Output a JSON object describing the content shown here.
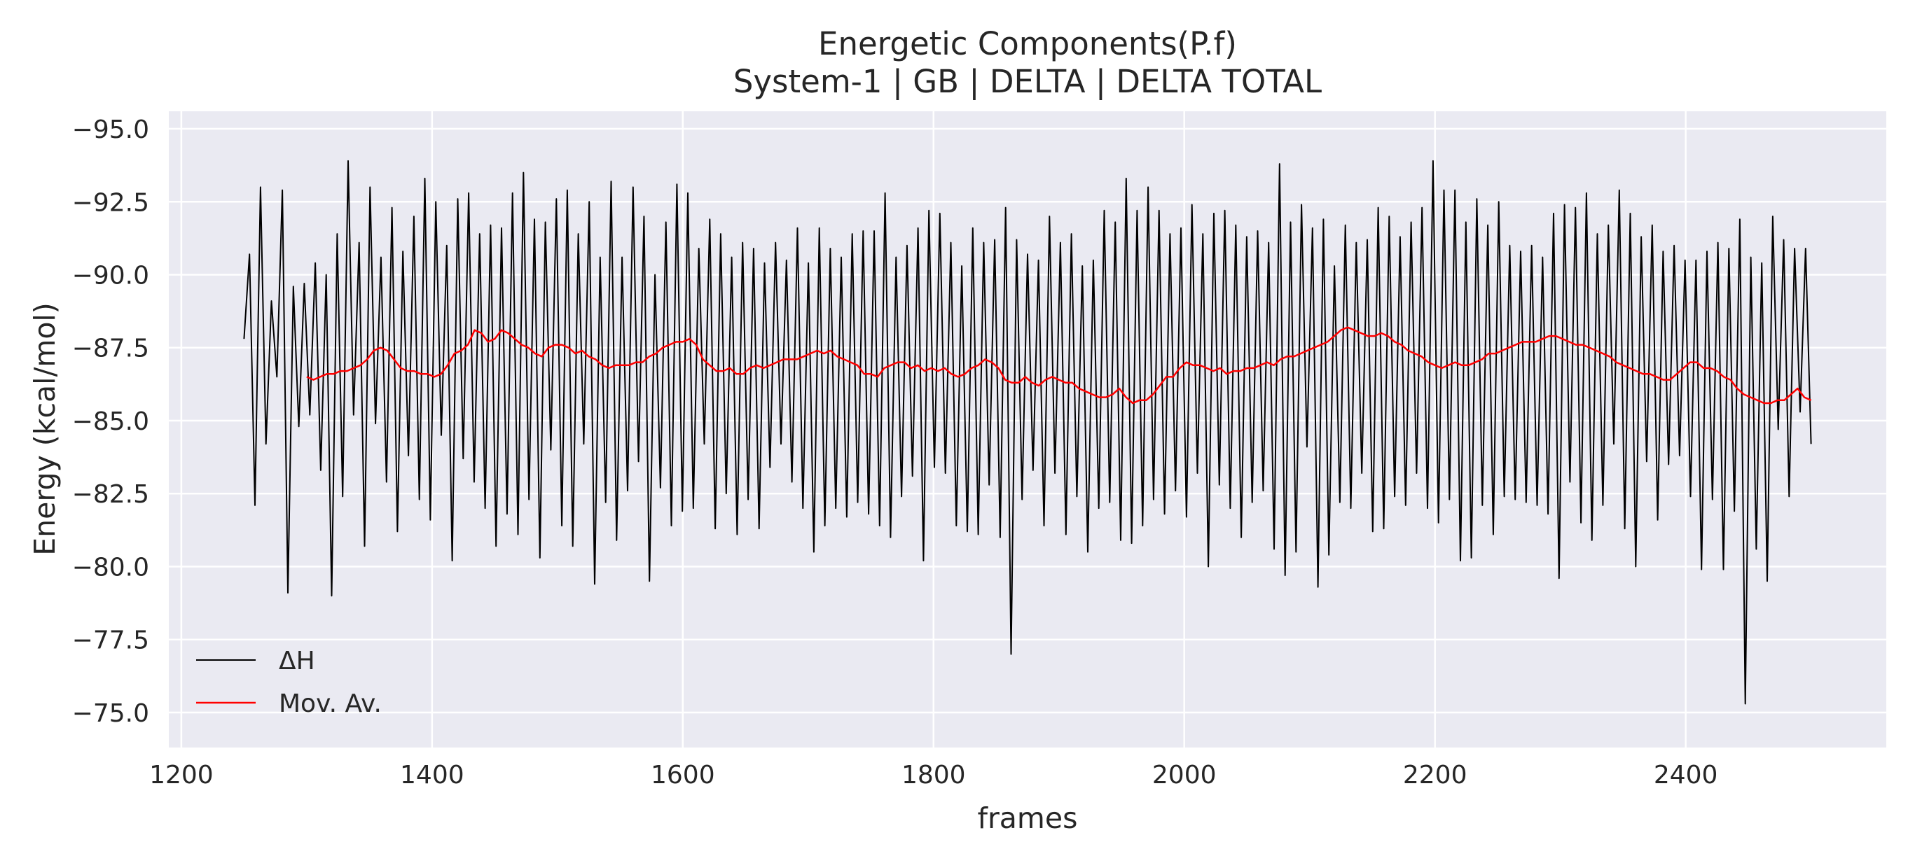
{
  "chart_data": {
    "type": "line",
    "title": "Energetic Components(P.f)",
    "subtitle": "System-1 | GB | DELTA | DELTA TOTAL",
    "xlabel": "frames",
    "ylabel": "Energy (kcal/mol)",
    "xlim": [
      1190,
      2560
    ],
    "ylim": [
      -95.6,
      -73.8
    ],
    "y_inverted": true,
    "grid": true,
    "x_ticks": [
      1200,
      1400,
      1600,
      1800,
      2000,
      2200,
      2400
    ],
    "x_tick_labels": [
      "1200",
      "1400",
      "1600",
      "1800",
      "2000",
      "2200",
      "2400"
    ],
    "y_ticks": [
      -95.0,
      -92.5,
      -90.0,
      -87.5,
      -85.0,
      -82.5,
      -80.0,
      -77.5,
      -75.0
    ],
    "y_tick_labels": [
      "−95.0",
      "−92.5",
      "−90.0",
      "−87.5",
      "−85.0",
      "−82.5",
      "−80.0",
      "−77.5",
      "−75.0"
    ],
    "legend_position": "bottom-left",
    "colors": {
      "background": "#eaeaf2",
      "grid": "#ffffff",
      "delta_h": "#000000",
      "mov_av": "#ff0000"
    },
    "series": [
      {
        "name": "ΔH",
        "color": "#000000",
        "x_start": 1250,
        "x_step": 25,
        "values": [
          -87.8,
          -90.7,
          -82.1,
          -93.0,
          -84.2,
          -89.1,
          -86.5,
          -92.9,
          -79.1,
          -89.6,
          -84.8,
          -89.7,
          -85.2,
          -90.4,
          -83.3,
          -90.0,
          -79.0,
          -91.4,
          -82.4,
          -93.9,
          -85.2,
          -91.1,
          -80.7,
          -93.0,
          -84.9,
          -90.6,
          -82.9,
          -92.3,
          -81.2,
          -90.8,
          -83.8,
          -92.0,
          -82.3,
          -93.3,
          -81.6,
          -92.5,
          -84.5,
          -91.0,
          -80.2,
          -92.6,
          -83.7,
          -92.8,
          -82.9,
          -91.4,
          -82.0,
          -91.7,
          -80.7,
          -91.6,
          -81.8,
          -92.8,
          -81.1,
          -93.5,
          -82.3,
          -91.9,
          -80.3,
          -91.8,
          -84.0,
          -92.6,
          -81.4,
          -92.9,
          -80.7,
          -91.4,
          -84.2,
          -92.5,
          -79.4,
          -90.6,
          -82.2,
          -93.2,
          -80.9,
          -90.6,
          -82.6,
          -93.0,
          -83.6,
          -92.0,
          -79.5,
          -90.0,
          -82.7,
          -91.8,
          -81.4,
          -93.1,
          -81.9,
          -92.8,
          -82.0,
          -90.9,
          -84.2,
          -91.9,
          -81.3,
          -91.4,
          -82.5,
          -90.6,
          -81.1,
          -91.1,
          -82.3,
          -90.9,
          -81.3,
          -90.4,
          -83.4,
          -91.1,
          -84.2,
          -90.5,
          -82.9,
          -91.6,
          -82.0,
          -90.4,
          -80.5,
          -91.6,
          -81.4,
          -90.9,
          -82.0,
          -90.6,
          -81.7,
          -91.4,
          -82.2,
          -91.5,
          -81.8,
          -91.5,
          -81.4,
          -92.8,
          -81.0,
          -90.6,
          -82.4,
          -91.0,
          -83.1,
          -91.6,
          -80.2,
          -92.2,
          -83.4,
          -92.1,
          -83.2,
          -91.1,
          -81.4,
          -90.3,
          -81.2,
          -91.6,
          -81.1,
          -91.1,
          -82.8,
          -91.2,
          -81.0,
          -92.3,
          -77.0,
          -91.2,
          -82.3,
          -90.7,
          -83.3,
          -90.5,
          -81.4,
          -92.0,
          -83.2,
          -91.1,
          -81.1,
          -91.4,
          -82.4,
          -90.3,
          -80.5,
          -90.5,
          -82.0,
          -92.2,
          -82.2,
          -91.8,
          -80.9,
          -93.3,
          -80.8,
          -92.2,
          -81.4,
          -93.0,
          -82.3,
          -92.2,
          -81.8,
          -91.4,
          -82.6,
          -91.6,
          -81.7,
          -92.4,
          -83.2,
          -91.4,
          -80.0,
          -92.1,
          -82.8,
          -92.2,
          -82.0,
          -91.7,
          -81.0,
          -91.3,
          -82.2,
          -91.5,
          -82.6,
          -91.1,
          -80.6,
          -93.8,
          -79.7,
          -91.8,
          -80.5,
          -92.4,
          -84.1,
          -91.6,
          -79.3,
          -91.9,
          -80.4,
          -90.3,
          -82.2,
          -91.7,
          -82.0,
          -91.1,
          -83.2,
          -91.2,
          -81.2,
          -92.3,
          -81.3,
          -92.0,
          -82.4,
          -91.3,
          -82.1,
          -91.8,
          -83.2,
          -92.3,
          -82.0,
          -93.9,
          -81.5,
          -92.9,
          -82.3,
          -92.9,
          -80.2,
          -91.8,
          -80.3,
          -92.6,
          -82.1,
          -91.7,
          -81.1,
          -92.5,
          -82.4,
          -91.0,
          -82.3,
          -90.8,
          -82.2,
          -91.0,
          -82.1,
          -90.6,
          -81.8,
          -92.1,
          -79.6,
          -92.4,
          -82.9,
          -92.3,
          -81.5,
          -92.8,
          -80.9,
          -91.4,
          -82.1,
          -91.7,
          -84.2,
          -92.9,
          -81.3,
          -92.1,
          -80.0,
          -91.3,
          -83.6,
          -91.7,
          -81.6,
          -90.8,
          -83.5,
          -91.0,
          -83.8,
          -90.5,
          -82.4,
          -90.5,
          -79.9,
          -90.8,
          -82.3,
          -91.1,
          -79.9,
          -90.9,
          -81.9,
          -91.9,
          -75.3,
          -90.6,
          -80.6,
          -90.4,
          -79.5,
          -92.0,
          -84.7,
          -91.2,
          -82.4,
          -90.9,
          -85.3,
          -90.9,
          -84.2
        ]
      },
      {
        "name": "Mov. Av.",
        "color": "#ff0000",
        "x_start": 1300,
        "x_step": 5,
        "values": [
          -86.5,
          -86.4,
          -86.5,
          -86.6,
          -86.6,
          -86.7,
          -86.7,
          -86.8,
          -86.9,
          -87.1,
          -87.4,
          -87.5,
          -87.4,
          -87.1,
          -86.8,
          -86.7,
          -86.7,
          -86.6,
          -86.6,
          -86.5,
          -86.6,
          -86.9,
          -87.3,
          -87.4,
          -87.6,
          -88.1,
          -88.0,
          -87.7,
          -87.8,
          -88.1,
          -88.0,
          -87.8,
          -87.6,
          -87.5,
          -87.3,
          -87.2,
          -87.5,
          -87.6,
          -87.6,
          -87.5,
          -87.3,
          -87.4,
          -87.2,
          -87.1,
          -86.9,
          -86.8,
          -86.9,
          -86.9,
          -86.9,
          -87.0,
          -87.0,
          -87.2,
          -87.3,
          -87.5,
          -87.6,
          -87.7,
          -87.7,
          -87.8,
          -87.6,
          -87.1,
          -86.9,
          -86.7,
          -86.7,
          -86.8,
          -86.6,
          -86.6,
          -86.8,
          -86.9,
          -86.8,
          -86.9,
          -87.0,
          -87.1,
          -87.1,
          -87.1,
          -87.2,
          -87.3,
          -87.4,
          -87.3,
          -87.4,
          -87.2,
          -87.1,
          -87.0,
          -86.9,
          -86.6,
          -86.6,
          -86.5,
          -86.8,
          -86.9,
          -87.0,
          -87.0,
          -86.8,
          -86.9,
          -86.7,
          -86.8,
          -86.7,
          -86.8,
          -86.6,
          -86.5,
          -86.6,
          -86.8,
          -86.9,
          -87.1,
          -87.0,
          -86.8,
          -86.4,
          -86.3,
          -86.3,
          -86.5,
          -86.3,
          -86.2,
          -86.4,
          -86.5,
          -86.4,
          -86.3,
          -86.3,
          -86.1,
          -86.0,
          -85.9,
          -85.8,
          -85.8,
          -85.9,
          -86.1,
          -85.8,
          -85.6,
          -85.7,
          -85.7,
          -85.9,
          -86.2,
          -86.5,
          -86.5,
          -86.8,
          -87.0,
          -86.9,
          -86.9,
          -86.8,
          -86.7,
          -86.8,
          -86.6,
          -86.7,
          -86.7,
          -86.8,
          -86.8,
          -86.9,
          -87.0,
          -86.9,
          -87.1,
          -87.2,
          -87.2,
          -87.3,
          -87.4,
          -87.5,
          -87.6,
          -87.7,
          -87.9,
          -88.1,
          -88.2,
          -88.1,
          -88.0,
          -87.9,
          -87.9,
          -88.0,
          -87.9,
          -87.7,
          -87.6,
          -87.4,
          -87.3,
          -87.2,
          -87.0,
          -86.9,
          -86.8,
          -86.9,
          -87.0,
          -86.9,
          -86.9,
          -87.0,
          -87.1,
          -87.3,
          -87.3,
          -87.4,
          -87.5,
          -87.6,
          -87.7,
          -87.7,
          -87.7,
          -87.8,
          -87.9,
          -87.9,
          -87.8,
          -87.7,
          -87.6,
          -87.6,
          -87.5,
          -87.4,
          -87.3,
          -87.2,
          -87.0,
          -86.9,
          -86.8,
          -86.7,
          -86.6,
          -86.6,
          -86.5,
          -86.4,
          -86.4,
          -86.6,
          -86.8,
          -87.0,
          -87.0,
          -86.8,
          -86.8,
          -86.7,
          -86.5,
          -86.4,
          -86.1,
          -85.9,
          -85.8,
          -85.7,
          -85.6,
          -85.6,
          -85.7,
          -85.7,
          -85.9,
          -86.1,
          -85.8,
          -85.7
        ]
      }
    ]
  }
}
